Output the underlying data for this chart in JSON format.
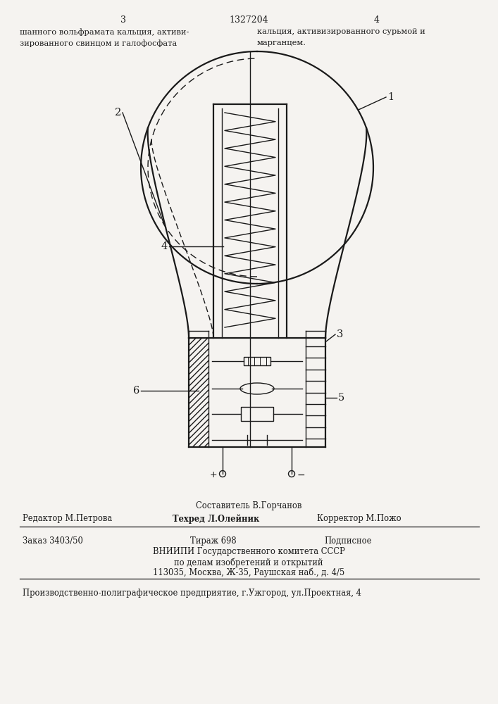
{
  "bg_color": "#f5f3f0",
  "line_color": "#1a1a1a",
  "page_num_left": "3",
  "page_num_center": "1327204",
  "page_num_right": "4",
  "top_text_left1": "шанного вольфрамата кальция, активи-",
  "top_text_left2": "зированного свинцом и галофосфата",
  "top_text_right1": "кальция, активизированного сурьмой и",
  "top_text_right2": "марганцем.",
  "label_1": "1",
  "label_2": "2",
  "label_3": "3",
  "label_4": "4",
  "label_5": "5",
  "label_6": "6",
  "bottom_composer": "Составитель В.Горчанов",
  "bottom_editor": "Редактор М.Петрова",
  "bottom_tech": "Техред Л.Олейник",
  "bottom_corr": "Корректор М.Пожо",
  "bottom_order": "Заказ 3403/50",
  "bottom_tirazh": "Тираж 698",
  "bottom_podp": "Подписное",
  "bottom_vniip1": "ВНИИПИ Государственного комитета СССР",
  "bottom_vniip2": "по делам изобретений и открытий",
  "bottom_vniip3": "113035, Москва, Ж-35, Раушская наб., д. 4/5",
  "bottom_prod": "Производственно-полиграфическое предприятие, г.Ужгород, ул.Проектная, 4"
}
